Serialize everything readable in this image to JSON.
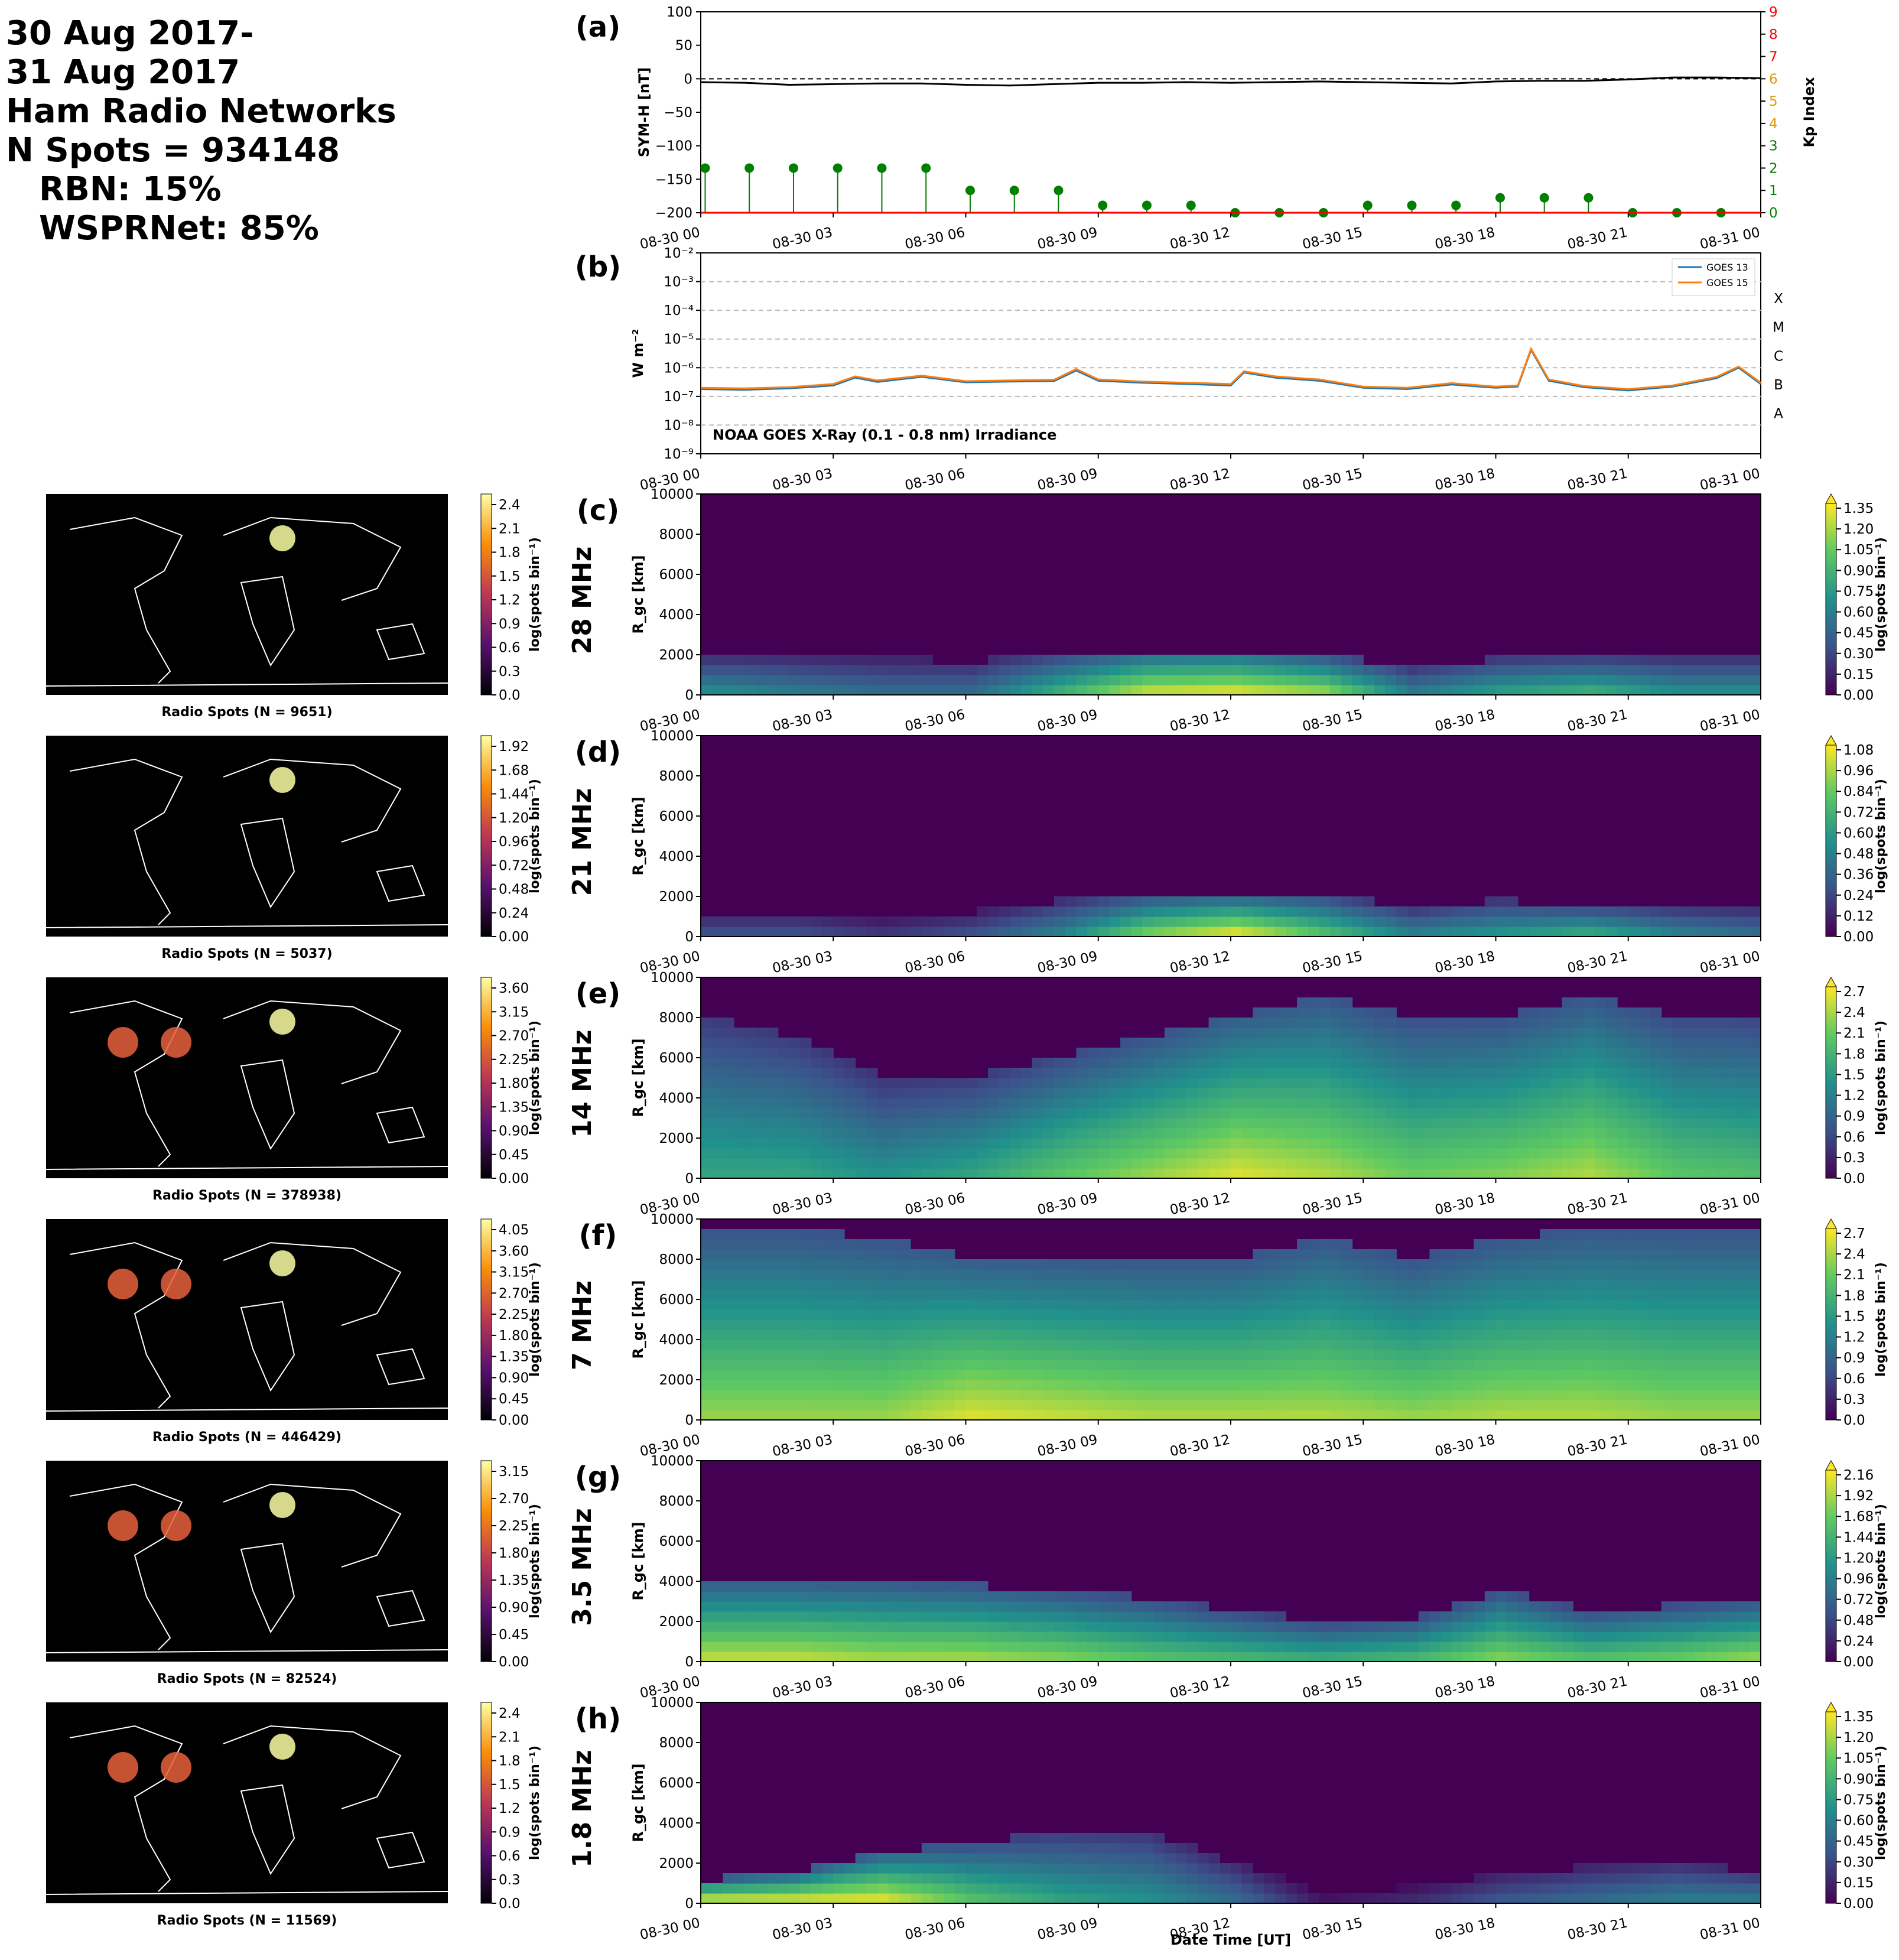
{
  "header": {
    "line1": "30 Aug 2017-",
    "line2": "31 Aug 2017",
    "line3": "Ham Radio Networks",
    "line4": "N Spots = 934148",
    "line5": "RBN: 15%",
    "line6": "WSPRNet: 85%"
  },
  "chart_data": [
    {
      "id": "a",
      "type": "line",
      "panel_letter": "(a)",
      "ylabel": "SYM-H [nT]",
      "ylabel_right": "Kp Index",
      "ylim": [
        -200,
        100
      ],
      "ylim_right": [
        0,
        9
      ],
      "yticks": [
        "100",
        "50",
        "0",
        "−50",
        "−100",
        "−150",
        "−200"
      ],
      "yticks_right": [
        "9",
        "8",
        "7",
        "6",
        "5",
        "4",
        "3",
        "2",
        "1",
        "0"
      ],
      "xticks": [
        "08-30 00",
        "08-30 03",
        "08-30 06",
        "08-30 09",
        "08-30 12",
        "08-30 15",
        "08-30 18",
        "08-30 21",
        "08-31 00"
      ],
      "symh_hours": [
        0,
        1,
        2,
        3,
        4,
        5,
        6,
        7,
        8,
        9,
        10,
        11,
        12,
        13,
        14,
        15,
        16,
        17,
        18,
        19,
        20,
        21,
        22,
        23,
        24
      ],
      "symh_values": [
        -5,
        -6,
        -9,
        -8,
        -7,
        -7,
        -9,
        -10,
        -8,
        -6,
        -6,
        -5,
        -6,
        -5,
        -4,
        -5,
        -6,
        -7,
        -4,
        -3,
        -3,
        -1,
        2,
        2,
        1
      ],
      "kp_hours": [
        0,
        1,
        2,
        3,
        4,
        5,
        6,
        7,
        8,
        9,
        10,
        11,
        12,
        13,
        14,
        15,
        16,
        17,
        18,
        19,
        20,
        21,
        22,
        23
      ],
      "kp_values": [
        2,
        2,
        2,
        2,
        2,
        2,
        1,
        1,
        1,
        0.33,
        0.33,
        0.33,
        0,
        0,
        0,
        0.33,
        0.33,
        0.33,
        0.67,
        0.67,
        0.67,
        0,
        0,
        0
      ]
    },
    {
      "id": "b",
      "type": "line",
      "panel_letter": "(b)",
      "ylabel": "W m⁻²",
      "log_scale": true,
      "ylim": [
        1e-09,
        0.01
      ],
      "yticks": [
        "10⁻²",
        "10⁻³",
        "10⁻⁴",
        "10⁻⁵",
        "10⁻⁶",
        "10⁻⁷",
        "10⁻⁸",
        "10⁻⁹"
      ],
      "flare_classes": [
        "X",
        "M",
        "C",
        "B",
        "A"
      ],
      "annotation": "NOAA GOES X-Ray (0.1 - 0.8 nm) Irradiance",
      "xticks": [
        "08-30 00",
        "08-30 03",
        "08-30 06",
        "08-30 09",
        "08-30 12",
        "08-30 15",
        "08-30 18",
        "08-30 21",
        "08-31 00"
      ],
      "hours": [
        0,
        1,
        2,
        3,
        3.5,
        4,
        5,
        6,
        7,
        8,
        8.5,
        9,
        10,
        11,
        12,
        12.3,
        13,
        14,
        15,
        16,
        17,
        18,
        18.5,
        18.8,
        19.2,
        20,
        21,
        22,
        23,
        23.5,
        24
      ],
      "series": [
        {
          "name": "GOES 13",
          "color": "#1f77b4",
          "values": [
            1.8e-07,
            1.7e-07,
            1.9e-07,
            2.4e-07,
            4.5e-07,
            3.2e-07,
            4.8e-07,
            3.1e-07,
            3.3e-07,
            3.4e-07,
            8e-07,
            3.5e-07,
            3e-07,
            2.7e-07,
            2.4e-07,
            6.8e-07,
            4.5e-07,
            3.5e-07,
            2e-07,
            1.8e-07,
            2.6e-07,
            2e-07,
            2.2e-07,
            4.2e-06,
            3.5e-07,
            2.1e-07,
            1.6e-07,
            2.2e-07,
            4.3e-07,
            1e-06,
            2.7e-07
          ]
        },
        {
          "name": "GOES 15",
          "color": "#ff7f0e",
          "values": [
            2e-07,
            1.9e-07,
            2.1e-07,
            2.7e-07,
            5e-07,
            3.6e-07,
            5.3e-07,
            3.4e-07,
            3.6e-07,
            3.8e-07,
            9e-07,
            3.9e-07,
            3.3e-07,
            3e-07,
            2.7e-07,
            7.5e-07,
            5e-07,
            3.9e-07,
            2.2e-07,
            2e-07,
            2.9e-07,
            2.2e-07,
            2.4e-07,
            4.6e-06,
            3.9e-07,
            2.3e-07,
            1.8e-07,
            2.4e-07,
            4.8e-07,
            1.1e-06,
            3e-07
          ]
        }
      ]
    }
  ],
  "rows": [
    {
      "letter": "(c)",
      "freq": "28 MHz",
      "map_caption": "Radio Spots (N = 9651)",
      "map_cbar_ticks": [
        "2.4",
        "2.1",
        "1.8",
        "1.5",
        "1.2",
        "0.9",
        "0.6",
        "0.3",
        "0.0"
      ],
      "cbar_ticks": [
        "1.35",
        "1.20",
        "1.05",
        "0.90",
        "0.75",
        "0.60",
        "0.45",
        "0.30",
        "0.15",
        "0.00"
      ],
      "heatmap_ylabel": "R_gc [km]",
      "yticks": [
        "10000",
        "8000",
        "6000",
        "4000",
        "2000",
        "0"
      ],
      "xticks": [
        "08-30 00",
        "08-30 03",
        "08-30 06",
        "08-30 09",
        "08-30 12",
        "08-30 15",
        "08-30 18",
        "08-30 21",
        "08-31 00"
      ],
      "intensity_hours": [
        0,
        2,
        4,
        6,
        8,
        10,
        12,
        14,
        16,
        18,
        20,
        22,
        24
      ],
      "intensity_near": [
        0.7,
        0.6,
        0.5,
        0.5,
        0.9,
        1.3,
        1.35,
        1.2,
        0.6,
        0.8,
        0.9,
        0.7,
        0.7
      ],
      "range_extent_km": [
        1800,
        1800,
        1800,
        1700,
        2000,
        2200,
        2200,
        1900,
        1500,
        1800,
        1800,
        1800,
        1800
      ],
      "cbar_label": "log(spots bin⁻¹)"
    },
    {
      "letter": "(d)",
      "freq": "21 MHz",
      "map_caption": "Radio Spots (N = 5037)",
      "map_cbar_ticks": [
        "1.92",
        "1.68",
        "1.44",
        "1.20",
        "0.96",
        "0.72",
        "0.48",
        "0.24",
        "0.00"
      ],
      "cbar_ticks": [
        "1.08",
        "0.96",
        "0.84",
        "0.72",
        "0.60",
        "0.48",
        "0.36",
        "0.24",
        "0.12",
        "0.00"
      ],
      "heatmap_ylabel": "R_gc [km]",
      "yticks": [
        "10000",
        "8000",
        "6000",
        "4000",
        "2000",
        "0"
      ],
      "xticks": [
        "08-30 00",
        "08-30 03",
        "08-30 06",
        "08-30 09",
        "08-30 12",
        "08-30 15",
        "08-30 18",
        "08-30 21",
        "08-31 00"
      ],
      "intensity_hours": [
        0,
        2,
        4,
        6,
        8,
        10,
        12,
        14,
        16,
        18,
        20,
        22,
        24
      ],
      "intensity_near": [
        0.3,
        0.3,
        0.2,
        0.3,
        0.5,
        0.9,
        1.1,
        0.8,
        0.5,
        0.6,
        0.7,
        0.5,
        0.4
      ],
      "range_extent_km": [
        1200,
        1200,
        1000,
        1200,
        1800,
        2000,
        2000,
        2000,
        1500,
        1800,
        1500,
        1500,
        1500
      ],
      "cbar_label": "log(spots bin⁻¹)"
    },
    {
      "letter": "(e)",
      "freq": "14 MHz",
      "map_caption": "Radio Spots (N = 378938)",
      "map_cbar_ticks": [
        "3.60",
        "3.15",
        "2.70",
        "2.25",
        "1.80",
        "1.35",
        "0.90",
        "0.45",
        "0.00"
      ],
      "cbar_ticks": [
        "2.7",
        "2.4",
        "2.1",
        "1.8",
        "1.5",
        "1.2",
        "0.9",
        "0.6",
        "0.3",
        "0.0"
      ],
      "heatmap_ylabel": "R_gc [km]",
      "yticks": [
        "10000",
        "8000",
        "6000",
        "4000",
        "2000",
        "0"
      ],
      "xticks": [
        "08-30 00",
        "08-30 03",
        "08-30 06",
        "08-30 09",
        "08-30 12",
        "08-30 15",
        "08-30 18",
        "08-30 21",
        "08-31 00"
      ],
      "intensity_hours": [
        0,
        2,
        4,
        6,
        8,
        10,
        12,
        14,
        16,
        18,
        20,
        22,
        24
      ],
      "intensity_near": [
        1.6,
        1.6,
        1.4,
        1.6,
        2.0,
        2.3,
        2.6,
        2.4,
        2.1,
        2.2,
        2.4,
        2.0,
        1.9
      ],
      "range_extent_km": [
        8000,
        7000,
        5000,
        5000,
        6000,
        7000,
        8000,
        9000,
        8000,
        8000,
        9000,
        8000,
        8000
      ],
      "cbar_label": "log(spots bin⁻¹)"
    },
    {
      "letter": "(f)",
      "freq": "7 MHz",
      "map_caption": "Radio Spots (N = 446429)",
      "map_cbar_ticks": [
        "4.05",
        "3.60",
        "3.15",
        "2.70",
        "2.25",
        "1.80",
        "1.35",
        "0.90",
        "0.45",
        "0.00"
      ],
      "cbar_ticks": [
        "2.7",
        "2.4",
        "2.1",
        "1.8",
        "1.5",
        "1.2",
        "0.9",
        "0.6",
        "0.3",
        "0.0"
      ],
      "heatmap_ylabel": "R_gc [km]",
      "yticks": [
        "10000",
        "8000",
        "6000",
        "4000",
        "2000",
        "0"
      ],
      "xticks": [
        "08-30 00",
        "08-30 03",
        "08-30 06",
        "08-30 09",
        "08-30 12",
        "08-30 15",
        "08-30 18",
        "08-30 21",
        "08-31 00"
      ],
      "intensity_hours": [
        0,
        2,
        4,
        6,
        8,
        10,
        12,
        14,
        16,
        18,
        20,
        22,
        24
      ],
      "intensity_near": [
        2.3,
        2.3,
        2.3,
        2.6,
        2.5,
        2.4,
        2.4,
        2.4,
        2.3,
        2.4,
        2.4,
        2.3,
        2.3
      ],
      "range_extent_km": [
        9500,
        9500,
        9000,
        8000,
        8000,
        8000,
        8000,
        9000,
        8000,
        9000,
        9500,
        9500,
        9500
      ],
      "cbar_label": "log(spots bin⁻¹)"
    },
    {
      "letter": "(g)",
      "freq": "3.5 MHz",
      "map_caption": "Radio Spots (N = 82524)",
      "map_cbar_ticks": [
        "3.15",
        "2.70",
        "2.25",
        "1.80",
        "1.35",
        "0.90",
        "0.45",
        "0.00"
      ],
      "cbar_ticks": [
        "2.16",
        "1.92",
        "1.68",
        "1.44",
        "1.20",
        "0.96",
        "0.72",
        "0.48",
        "0.24",
        "0.00"
      ],
      "heatmap_ylabel": "R_gc [km]",
      "yticks": [
        "10000",
        "8000",
        "6000",
        "4000",
        "2000",
        "0"
      ],
      "xticks": [
        "08-30 00",
        "08-30 03",
        "08-30 06",
        "08-30 09",
        "08-30 12",
        "08-30 15",
        "08-30 18",
        "08-30 21",
        "08-31 00"
      ],
      "intensity_hours": [
        0,
        2,
        4,
        6,
        8,
        10,
        12,
        14,
        16,
        18,
        20,
        22,
        24
      ],
      "intensity_near": [
        2.0,
        2.0,
        1.9,
        1.9,
        1.8,
        1.6,
        1.5,
        1.4,
        1.5,
        1.8,
        1.6,
        1.7,
        1.9
      ],
      "range_extent_km": [
        4000,
        4000,
        4000,
        3800,
        3500,
        3200,
        2500,
        2000,
        2200,
        3500,
        2500,
        2800,
        3000
      ],
      "cbar_label": "log(spots bin⁻¹)"
    },
    {
      "letter": "(h)",
      "freq": "1.8 MHz",
      "map_caption": "Radio Spots (N = 11569)",
      "map_cbar_ticks": [
        "2.4",
        "2.1",
        "1.8",
        "1.5",
        "1.2",
        "0.9",
        "0.6",
        "0.3",
        "0.0"
      ],
      "cbar_ticks": [
        "1.35",
        "1.20",
        "1.05",
        "0.90",
        "0.75",
        "0.60",
        "0.45",
        "0.30",
        "0.15",
        "0.00"
      ],
      "heatmap_ylabel": "R_gc [km]",
      "yticks": [
        "10000",
        "8000",
        "6000",
        "4000",
        "2000",
        "0"
      ],
      "xticks": [
        "08-30 00",
        "08-30 03",
        "08-30 06",
        "08-30 09",
        "08-30 12",
        "08-30 15",
        "08-30 18",
        "08-30 21",
        "08-31 00"
      ],
      "xlabel": "Date Time [UT]",
      "intensity_hours": [
        0,
        2,
        4,
        6,
        8,
        10,
        12,
        14,
        16,
        18,
        20,
        22,
        24
      ],
      "intensity_near": [
        1.35,
        1.35,
        1.35,
        1.0,
        0.8,
        0.7,
        0.5,
        0.1,
        0.2,
        0.4,
        0.5,
        0.6,
        0.6
      ],
      "range_extent_km": [
        1200,
        1500,
        2500,
        3000,
        3500,
        3500,
        2000,
        500,
        800,
        1500,
        1800,
        2000,
        1500
      ],
      "cbar_label": "log(spots bin⁻¹)"
    }
  ],
  "colors": {
    "viridis_low": "#440154",
    "viridis_high": "#fde725",
    "symh_line": "#000000",
    "kp_stem": "#008000",
    "kp_axis": "#ff0000"
  }
}
